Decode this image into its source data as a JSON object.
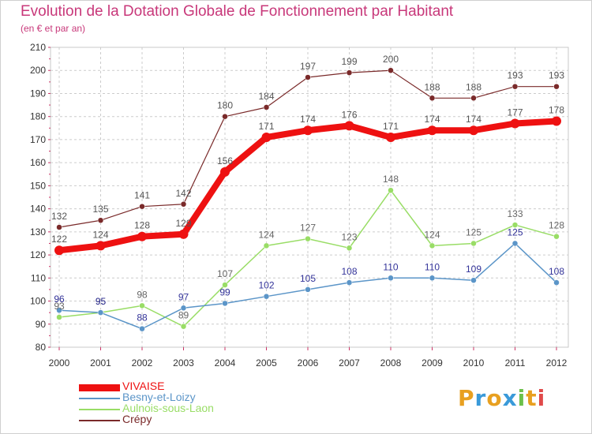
{
  "title": "Evolution de la Dotation Globale de Fonctionnement par Habitant",
  "subtitle": "(en € et par an)",
  "logo": {
    "letters": [
      "P",
      "r",
      "o",
      "x",
      "i",
      "t",
      "i"
    ],
    "colors": [
      "#e8a020",
      "#3a9ad9",
      "#e8a020",
      "#3a9ad9",
      "#6cc04a",
      "#e8a020",
      "#e04a4a"
    ]
  },
  "chart_data": {
    "type": "line",
    "title": "Evolution de la Dotation Globale de Fonctionnement par Habitant",
    "subtitle": "(en € et par an)",
    "xlabel": "",
    "ylabel": "",
    "ylim": [
      80,
      210
    ],
    "yticks": [
      "80",
      "90",
      "100",
      "110",
      "120",
      "130",
      "140",
      "150",
      "160",
      "170",
      "180",
      "190",
      "200",
      "210"
    ],
    "x": [
      "2000",
      "2001",
      "2002",
      "2003",
      "2004",
      "2005",
      "2006",
      "2007",
      "2008",
      "2009",
      "2010",
      "2011",
      "2012"
    ],
    "grid": true,
    "legend_position": "bottom-left",
    "series": [
      {
        "name": "VIVAISE",
        "color": "#ee1111",
        "values": [
          122,
          124,
          128,
          129,
          156,
          171,
          174,
          176,
          171,
          174,
          174,
          177,
          178
        ],
        "labels": [
          "122",
          "124",
          "128",
          "129",
          "156",
          "171",
          "174",
          "176",
          "171",
          "174",
          "174",
          "177",
          "178"
        ]
      },
      {
        "name": "Besny-et-Loizy",
        "color": "#5b95c8",
        "values": [
          96,
          95,
          88,
          97,
          99,
          102,
          105,
          108,
          110,
          110,
          109,
          125,
          108
        ],
        "labels": [
          "96",
          "95",
          "88",
          "97",
          "99",
          "102",
          "105",
          "108",
          "110",
          "110",
          "109",
          "125",
          "108"
        ]
      },
      {
        "name": "Aulnois-sous-Laon",
        "color": "#99dd66",
        "values": [
          93,
          95,
          98,
          89,
          107,
          124,
          127,
          123,
          148,
          124,
          125,
          133,
          128
        ],
        "labels": [
          "93",
          "95",
          "98",
          "89",
          "107",
          "124",
          "127",
          "123",
          "148",
          "124",
          "125",
          "133",
          "128"
        ]
      },
      {
        "name": "Crépy",
        "color": "#7a2a2a",
        "values": [
          132,
          135,
          141,
          142,
          180,
          184,
          197,
          199,
          200,
          188,
          188,
          193,
          193
        ],
        "labels": [
          "132",
          "135",
          "141",
          "142",
          "180",
          "184",
          "197",
          "199",
          "200",
          "188",
          "188",
          "193",
          "193"
        ]
      }
    ]
  }
}
